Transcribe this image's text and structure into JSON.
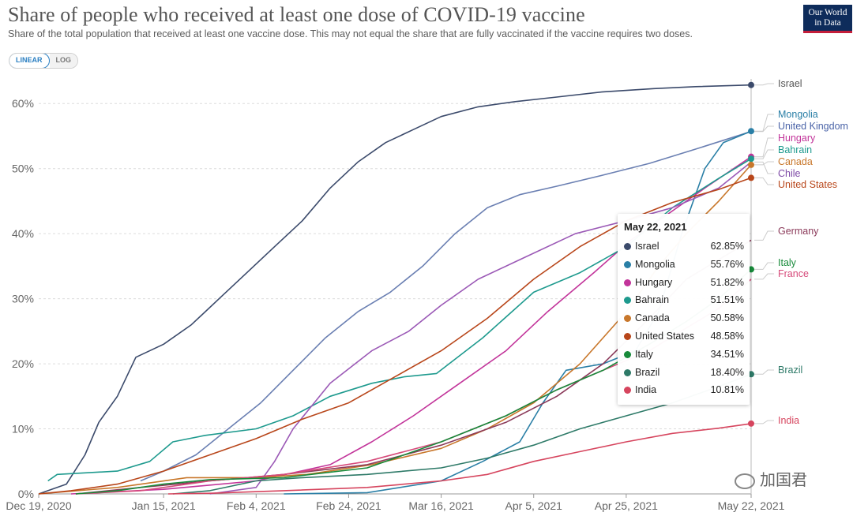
{
  "header": {
    "title": "Share of people who received at least one dose of COVID-19 vaccine",
    "subtitle": "Share of the total population that received at least one vaccine dose. This may not equal the share that are fully vaccinated if the vaccine requires two doses.",
    "logo_line1": "Our World",
    "logo_line2": "in Data"
  },
  "controls": {
    "linear_label": "LINEAR",
    "log_label": "LOG",
    "selected": "LINEAR"
  },
  "tooltip": {
    "date": "May 22, 2021",
    "rows": [
      {
        "name": "Israel",
        "value": "62.85%",
        "color": "#3b4a6b"
      },
      {
        "name": "Mongolia",
        "value": "55.76%",
        "color": "#2a7fa6"
      },
      {
        "name": "Hungary",
        "value": "51.82%",
        "color": "#c2349a"
      },
      {
        "name": "Bahrain",
        "value": "51.51%",
        "color": "#1e9a8e"
      },
      {
        "name": "Canada",
        "value": "50.58%",
        "color": "#c8772b"
      },
      {
        "name": "United States",
        "value": "48.58%",
        "color": "#b8461a"
      },
      {
        "name": "Italy",
        "value": "34.51%",
        "color": "#178a3a"
      },
      {
        "name": "Brazil",
        "value": "18.40%",
        "color": "#2e7a68"
      },
      {
        "name": "India",
        "value": "10.81%",
        "color": "#d6455e"
      }
    ]
  },
  "watermark": "加国君",
  "chart_data": {
    "type": "line",
    "title": "Share of people who received at least one dose of COVID-19 vaccine",
    "x_type": "date",
    "xlim": [
      "2020-12-19",
      "2021-05-22"
    ],
    "ylim": [
      0,
      65
    ],
    "y_ticks": [
      0,
      10,
      20,
      30,
      40,
      50,
      60
    ],
    "y_tick_labels": [
      "0%",
      "10%",
      "20%",
      "30%",
      "40%",
      "50%",
      "60%"
    ],
    "x_ticks": [
      "2020-12-19",
      "2021-01-15",
      "2021-02-04",
      "2021-02-24",
      "2021-03-16",
      "2021-04-05",
      "2021-04-25",
      "2021-05-22"
    ],
    "x_tick_labels": [
      "Dec 19, 2020",
      "Jan 15, 2021",
      "Feb 4, 2021",
      "Feb 24, 2021",
      "Mar 16, 2021",
      "Apr 5, 2021",
      "Apr 25, 2021",
      "May 22, 2021"
    ],
    "grid": true,
    "legend": "right-end labels",
    "series": [
      {
        "name": "Israel",
        "color": "#3b4a6b",
        "label_color": "#555555",
        "end_label": "Israel",
        "points": [
          [
            "2020-12-19",
            0
          ],
          [
            "2020-12-25",
            1.5
          ],
          [
            "2020-12-29",
            6
          ],
          [
            "2021-01-01",
            11
          ],
          [
            "2021-01-05",
            15
          ],
          [
            "2021-01-09",
            21
          ],
          [
            "2021-01-15",
            23
          ],
          [
            "2021-01-21",
            26
          ],
          [
            "2021-01-27",
            30
          ],
          [
            "2021-02-02",
            34
          ],
          [
            "2021-02-08",
            38
          ],
          [
            "2021-02-14",
            42
          ],
          [
            "2021-02-20",
            47
          ],
          [
            "2021-02-26",
            51
          ],
          [
            "2021-03-04",
            54
          ],
          [
            "2021-03-10",
            56
          ],
          [
            "2021-03-16",
            58
          ],
          [
            "2021-03-24",
            59.5
          ],
          [
            "2021-04-01",
            60.3
          ],
          [
            "2021-04-10",
            61
          ],
          [
            "2021-04-20",
            61.8
          ],
          [
            "2021-05-01",
            62.3
          ],
          [
            "2021-05-10",
            62.6
          ],
          [
            "2021-05-22",
            62.85
          ]
        ]
      },
      {
        "name": "United Kingdom",
        "color": "#6a7fb2",
        "label_color": "#4b64a8",
        "end_label": "United Kingdom",
        "points": [
          [
            "2021-01-10",
            2
          ],
          [
            "2021-01-15",
            3.5
          ],
          [
            "2021-01-22",
            6
          ],
          [
            "2021-01-29",
            10
          ],
          [
            "2021-02-05",
            14
          ],
          [
            "2021-02-12",
            19
          ],
          [
            "2021-02-19",
            24
          ],
          [
            "2021-02-26",
            28
          ],
          [
            "2021-03-05",
            31
          ],
          [
            "2021-03-12",
            35
          ],
          [
            "2021-03-19",
            40
          ],
          [
            "2021-03-26",
            44
          ],
          [
            "2021-04-02",
            46
          ],
          [
            "2021-04-10",
            47.3
          ],
          [
            "2021-04-20",
            49
          ],
          [
            "2021-04-30",
            50.8
          ],
          [
            "2021-05-10",
            53
          ],
          [
            "2021-05-22",
            55.7
          ]
        ]
      },
      {
        "name": "Mongolia",
        "color": "#2a7fa6",
        "label_color": "#2a7fa6",
        "end_label": "Mongolia",
        "points": [
          [
            "2021-02-10",
            0
          ],
          [
            "2021-02-28",
            0.2
          ],
          [
            "2021-03-16",
            2
          ],
          [
            "2021-03-25",
            5
          ],
          [
            "2021-04-02",
            8
          ],
          [
            "2021-04-07",
            14
          ],
          [
            "2021-04-12",
            19
          ],
          [
            "2021-04-20",
            20
          ],
          [
            "2021-04-27",
            22
          ],
          [
            "2021-05-02",
            28
          ],
          [
            "2021-05-07",
            40
          ],
          [
            "2021-05-12",
            50
          ],
          [
            "2021-05-16",
            54
          ],
          [
            "2021-05-22",
            55.76
          ]
        ]
      },
      {
        "name": "Hungary",
        "color": "#c2349a",
        "label_color": "#c2349a",
        "end_label": "Hungary",
        "points": [
          [
            "2020-12-26",
            0
          ],
          [
            "2021-01-15",
            0.7
          ],
          [
            "2021-02-04",
            2
          ],
          [
            "2021-02-20",
            4.5
          ],
          [
            "2021-03-01",
            8
          ],
          [
            "2021-03-10",
            12
          ],
          [
            "2021-03-20",
            17
          ],
          [
            "2021-03-30",
            22
          ],
          [
            "2021-04-08",
            28
          ],
          [
            "2021-04-18",
            34
          ],
          [
            "2021-04-26",
            39
          ],
          [
            "2021-05-04",
            43
          ],
          [
            "2021-05-12",
            47
          ],
          [
            "2021-05-22",
            51.82
          ]
        ]
      },
      {
        "name": "Bahrain",
        "color": "#1e9a8e",
        "label_color": "#1e9a8e",
        "end_label": "Bahrain",
        "points": [
          [
            "2020-12-21",
            2
          ],
          [
            "2020-12-23",
            3
          ],
          [
            "2021-01-05",
            3.5
          ],
          [
            "2021-01-12",
            5
          ],
          [
            "2021-01-17",
            8
          ],
          [
            "2021-01-24",
            9
          ],
          [
            "2021-02-04",
            10
          ],
          [
            "2021-02-12",
            12
          ],
          [
            "2021-02-20",
            15
          ],
          [
            "2021-03-01",
            17
          ],
          [
            "2021-03-08",
            18
          ],
          [
            "2021-03-15",
            18.5
          ],
          [
            "2021-03-25",
            24
          ],
          [
            "2021-04-05",
            31
          ],
          [
            "2021-04-15",
            34
          ],
          [
            "2021-04-25",
            38
          ],
          [
            "2021-05-05",
            44
          ],
          [
            "2021-05-15",
            48.5
          ],
          [
            "2021-05-22",
            51.51
          ]
        ]
      },
      {
        "name": "Canada",
        "color": "#c8772b",
        "label_color": "#c8772b",
        "end_label": "Canada",
        "points": [
          [
            "2020-12-19",
            0
          ],
          [
            "2021-01-05",
            1
          ],
          [
            "2021-01-20",
            2.5
          ],
          [
            "2021-02-04",
            2.5
          ],
          [
            "2021-02-15",
            3
          ],
          [
            "2021-03-01",
            4.5
          ],
          [
            "2021-03-16",
            7
          ],
          [
            "2021-03-26",
            10
          ],
          [
            "2021-04-05",
            14
          ],
          [
            "2021-04-15",
            20
          ],
          [
            "2021-04-25",
            28
          ],
          [
            "2021-05-02",
            35
          ],
          [
            "2021-05-08",
            40
          ],
          [
            "2021-05-15",
            45
          ],
          [
            "2021-05-22",
            50.58
          ]
        ]
      },
      {
        "name": "Chile",
        "color": "#9b59b6",
        "label_color": "#7d49a6",
        "end_label": "Chile",
        "points": [
          [
            "2021-01-25",
            0
          ],
          [
            "2021-02-04",
            1
          ],
          [
            "2021-02-08",
            5
          ],
          [
            "2021-02-12",
            10
          ],
          [
            "2021-02-20",
            17
          ],
          [
            "2021-03-01",
            22
          ],
          [
            "2021-03-09",
            25
          ],
          [
            "2021-03-16",
            29
          ],
          [
            "2021-03-24",
            33
          ],
          [
            "2021-04-02",
            36
          ],
          [
            "2021-04-14",
            40
          ],
          [
            "2021-04-25",
            42
          ],
          [
            "2021-05-05",
            44
          ],
          [
            "2021-05-15",
            47
          ],
          [
            "2021-05-22",
            51
          ]
        ]
      },
      {
        "name": "United States",
        "color": "#b8461a",
        "label_color": "#b8461a",
        "end_label": "United States",
        "points": [
          [
            "2020-12-19",
            0
          ],
          [
            "2020-12-26",
            0.5
          ],
          [
            "2021-01-05",
            1.5
          ],
          [
            "2021-01-15",
            3.5
          ],
          [
            "2021-01-25",
            6
          ],
          [
            "2021-02-04",
            8.5
          ],
          [
            "2021-02-14",
            11.5
          ],
          [
            "2021-02-24",
            14
          ],
          [
            "2021-03-06",
            18
          ],
          [
            "2021-03-16",
            22
          ],
          [
            "2021-03-26",
            27
          ],
          [
            "2021-04-05",
            33
          ],
          [
            "2021-04-15",
            38
          ],
          [
            "2021-04-25",
            42
          ],
          [
            "2021-05-05",
            44.8
          ],
          [
            "2021-05-15",
            46.8
          ],
          [
            "2021-05-22",
            48.58
          ]
        ]
      },
      {
        "name": "Germany",
        "color": "#8b3a5a",
        "label_color": "#8b3a5a",
        "end_label": "Germany",
        "points": [
          [
            "2020-12-27",
            0
          ],
          [
            "2021-01-10",
            1
          ],
          [
            "2021-01-25",
            2
          ],
          [
            "2021-02-10",
            3
          ],
          [
            "2021-02-28",
            4.5
          ],
          [
            "2021-03-16",
            7.5
          ],
          [
            "2021-03-30",
            11
          ],
          [
            "2021-04-10",
            15
          ],
          [
            "2021-04-20",
            20
          ],
          [
            "2021-04-30",
            27
          ],
          [
            "2021-05-08",
            33
          ],
          [
            "2021-05-15",
            36
          ],
          [
            "2021-05-22",
            39
          ]
        ]
      },
      {
        "name": "France",
        "color": "#d64a7a",
        "label_color": "#d64a7a",
        "end_label": "France",
        "points": [
          [
            "2020-12-27",
            0
          ],
          [
            "2021-01-10",
            0.5
          ],
          [
            "2021-01-25",
            2
          ],
          [
            "2021-02-10",
            3
          ],
          [
            "2021-02-28",
            5
          ],
          [
            "2021-03-16",
            8
          ],
          [
            "2021-03-30",
            12
          ],
          [
            "2021-04-10",
            16
          ],
          [
            "2021-04-20",
            19
          ],
          [
            "2021-04-30",
            22
          ],
          [
            "2021-05-08",
            25.5
          ],
          [
            "2021-05-15",
            28.5
          ],
          [
            "2021-05-22",
            33
          ]
        ]
      },
      {
        "name": "Italy",
        "color": "#178a3a",
        "label_color": "#178a3a",
        "end_label": "Italy",
        "points": [
          [
            "2020-12-27",
            0
          ],
          [
            "2021-01-05",
            0.5
          ],
          [
            "2021-01-15",
            1.5
          ],
          [
            "2021-01-25",
            2.2
          ],
          [
            "2021-02-10",
            2.5
          ],
          [
            "2021-02-28",
            4
          ],
          [
            "2021-03-16",
            8
          ],
          [
            "2021-03-30",
            12
          ],
          [
            "2021-04-10",
            16
          ],
          [
            "2021-04-20",
            19
          ],
          [
            "2021-04-30",
            23
          ],
          [
            "2021-05-08",
            26.5
          ],
          [
            "2021-05-15",
            30
          ],
          [
            "2021-05-22",
            34.51
          ]
        ]
      },
      {
        "name": "Brazil",
        "color": "#2e7a68",
        "label_color": "#2e7a68",
        "end_label": "Brazil",
        "points": [
          [
            "2021-01-17",
            0
          ],
          [
            "2021-01-25",
            0.5
          ],
          [
            "2021-02-04",
            2
          ],
          [
            "2021-02-14",
            2.5
          ],
          [
            "2021-02-28",
            3
          ],
          [
            "2021-03-16",
            4
          ],
          [
            "2021-03-26",
            5.5
          ],
          [
            "2021-04-05",
            7.5
          ],
          [
            "2021-04-15",
            10
          ],
          [
            "2021-04-25",
            12
          ],
          [
            "2021-05-05",
            14
          ],
          [
            "2021-05-15",
            16.5
          ],
          [
            "2021-05-22",
            18.4
          ]
        ]
      },
      {
        "name": "India",
        "color": "#d6455e",
        "label_color": "#d6455e",
        "end_label": "India",
        "points": [
          [
            "2021-01-16",
            0
          ],
          [
            "2021-01-25",
            0.1
          ],
          [
            "2021-02-10",
            0.5
          ],
          [
            "2021-02-28",
            1
          ],
          [
            "2021-03-16",
            2
          ],
          [
            "2021-03-26",
            3
          ],
          [
            "2021-04-05",
            5
          ],
          [
            "2021-04-15",
            6.5
          ],
          [
            "2021-04-25",
            8
          ],
          [
            "2021-05-05",
            9.3
          ],
          [
            "2021-05-15",
            10.1
          ],
          [
            "2021-05-22",
            10.81
          ]
        ]
      }
    ]
  }
}
